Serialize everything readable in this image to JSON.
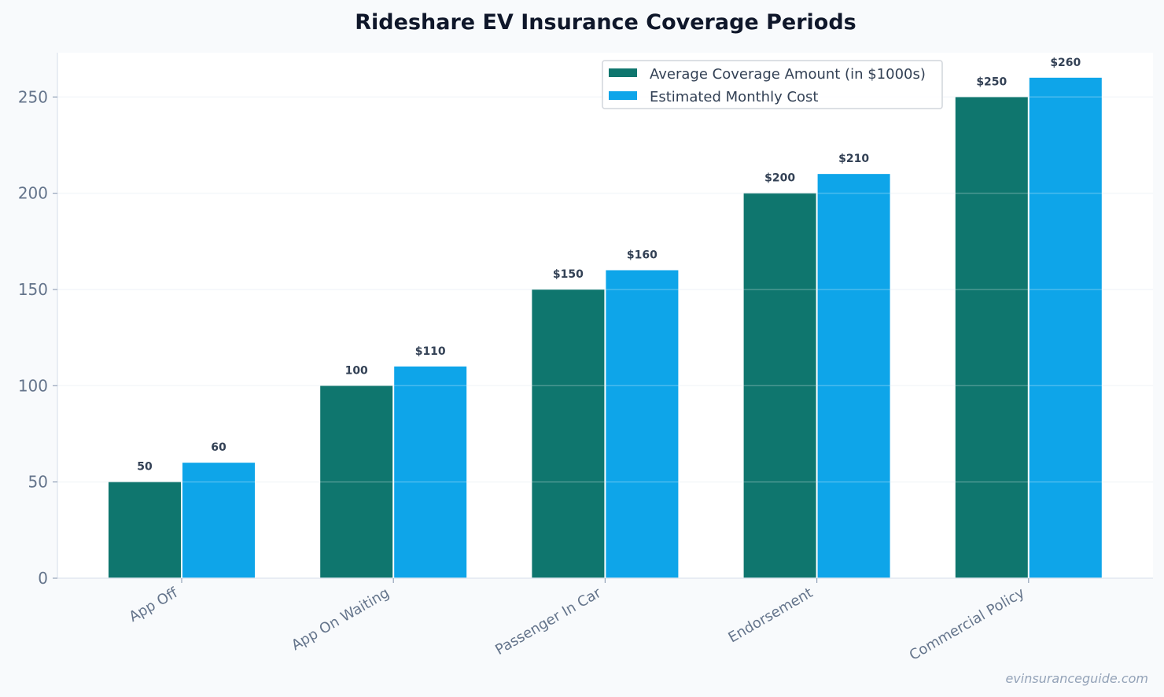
{
  "chart_data": {
    "type": "bar",
    "title": "Rideshare EV Insurance Coverage Periods",
    "xlabel": "",
    "ylabel": "",
    "categories": [
      "App Off",
      "App On Waiting",
      "Passenger In Car",
      "Endorsement",
      "Commercial Policy"
    ],
    "series": [
      {
        "name": "Average Coverage Amount (in $1000s)",
        "values": [
          50,
          100,
          150,
          200,
          250
        ],
        "labels": [
          "50",
          "100",
          "$150",
          "$200",
          "$250"
        ],
        "color": "#0f766e"
      },
      {
        "name": "Estimated Monthly Cost",
        "values": [
          60,
          110,
          160,
          210,
          260
        ],
        "labels": [
          "60",
          "$110",
          "$160",
          "$210",
          "$260"
        ],
        "color": "#0ea5e9"
      }
    ],
    "ylim": [
      0,
      273
    ],
    "yticks": [
      0,
      50,
      100,
      150,
      200,
      250
    ],
    "grid": true,
    "legend_position": "top-right"
  },
  "watermark": "evinsuranceguide.com"
}
